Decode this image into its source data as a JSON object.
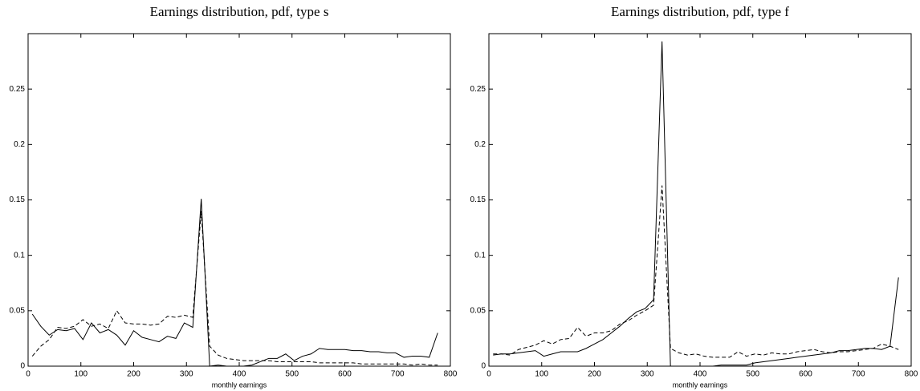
{
  "chart_data": [
    {
      "type": "line",
      "title": "Earnings distribution, pdf, type s",
      "x_label": "monthly earnings",
      "xlim": [
        0,
        800
      ],
      "xticks": [
        0,
        100,
        200,
        300,
        400,
        500,
        600,
        700,
        800
      ],
      "ylim": [
        0,
        0.3
      ],
      "yticks": [
        0,
        0.05,
        0.1,
        0.15,
        0.2,
        0.25
      ],
      "x": [
        8,
        24,
        40,
        56,
        72,
        88,
        104,
        120,
        136,
        152,
        168,
        184,
        200,
        216,
        232,
        248,
        264,
        280,
        296,
        312,
        328,
        344,
        360,
        376,
        392,
        408,
        424,
        440,
        456,
        472,
        488,
        504,
        520,
        536,
        552,
        568,
        584,
        600,
        616,
        632,
        648,
        664,
        680,
        696,
        712,
        728,
        744,
        760,
        776
      ],
      "series": [
        {
          "color": "#000000",
          "style": "solid",
          "values": [
            0.047,
            0.036,
            0.028,
            0.033,
            0.032,
            0.034,
            0.024,
            0.039,
            0.03,
            0.033,
            0.028,
            0.019,
            0.032,
            0.026,
            0.024,
            0.022,
            0.027,
            0.025,
            0.039,
            0.035,
            0.151,
            0.0,
            0.001,
            0,
            0,
            0,
            0.001,
            0.004,
            0.007,
            0.007,
            0.011,
            0.005,
            0.009,
            0.011,
            0.016,
            0.015,
            0.015,
            0.015,
            0.014,
            0.014,
            0.013,
            0.013,
            0.012,
            0.012,
            0.008,
            0.009,
            0.009,
            0.008,
            0.03
          ]
        },
        {
          "color": "#000000",
          "style": "dashed",
          "values": [
            0.009,
            0.018,
            0.024,
            0.035,
            0.034,
            0.036,
            0.042,
            0.036,
            0.038,
            0.034,
            0.05,
            0.039,
            0.038,
            0.038,
            0.037,
            0.038,
            0.045,
            0.044,
            0.046,
            0.044,
            0.14,
            0.018,
            0.01,
            0.007,
            0.006,
            0.005,
            0.005,
            0.005,
            0.005,
            0.004,
            0.004,
            0.004,
            0.004,
            0.004,
            0.003,
            0.003,
            0.003,
            0.003,
            0.003,
            0.002,
            0.002,
            0.002,
            0.002,
            0.002,
            0.002,
            0.001,
            0.002,
            0.001,
            0.001
          ]
        }
      ]
    },
    {
      "type": "line",
      "title": "Earnings distribution, pdf, type f",
      "x_label": "monthly earnings",
      "xlim": [
        0,
        800
      ],
      "xticks": [
        0,
        100,
        200,
        300,
        400,
        500,
        600,
        700,
        800
      ],
      "ylim": [
        0,
        0.3
      ],
      "yticks": [
        0,
        0.05,
        0.1,
        0.15,
        0.2,
        0.25
      ],
      "x": [
        8,
        24,
        40,
        56,
        72,
        88,
        104,
        120,
        136,
        152,
        168,
        184,
        200,
        216,
        232,
        248,
        264,
        280,
        296,
        312,
        328,
        344,
        360,
        376,
        392,
        408,
        424,
        440,
        456,
        472,
        488,
        504,
        520,
        536,
        552,
        568,
        584,
        600,
        616,
        632,
        648,
        664,
        680,
        696,
        712,
        728,
        744,
        760,
        776
      ],
      "series": [
        {
          "color": "#000000",
          "style": "solid",
          "values": [
            0.01,
            0.011,
            0.011,
            0.012,
            0.013,
            0.014,
            0.009,
            0.011,
            0.013,
            0.013,
            0.013,
            0.016,
            0.02,
            0.024,
            0.03,
            0.036,
            0.043,
            0.049,
            0.052,
            0.06,
            0.293,
            0,
            0,
            0,
            0,
            0,
            0,
            0.001,
            0.001,
            0.001,
            0.001,
            0.003,
            0.004,
            0.005,
            0.006,
            0.007,
            0.008,
            0.009,
            0.01,
            0.011,
            0.012,
            0.014,
            0.014,
            0.015,
            0.016,
            0.016,
            0.015,
            0.018,
            0.08
          ]
        },
        {
          "color": "#000000",
          "style": "dashed",
          "values": [
            0.011,
            0.011,
            0.01,
            0.015,
            0.017,
            0.019,
            0.023,
            0.02,
            0.024,
            0.025,
            0.035,
            0.027,
            0.03,
            0.03,
            0.032,
            0.038,
            0.041,
            0.046,
            0.05,
            0.055,
            0.163,
            0.016,
            0.012,
            0.01,
            0.011,
            0.009,
            0.008,
            0.008,
            0.008,
            0.013,
            0.009,
            0.011,
            0.01,
            0.012,
            0.011,
            0.011,
            0.013,
            0.014,
            0.015,
            0.013,
            0.012,
            0.013,
            0.013,
            0.014,
            0.015,
            0.016,
            0.02,
            0.018,
            0.015
          ]
        }
      ]
    }
  ]
}
